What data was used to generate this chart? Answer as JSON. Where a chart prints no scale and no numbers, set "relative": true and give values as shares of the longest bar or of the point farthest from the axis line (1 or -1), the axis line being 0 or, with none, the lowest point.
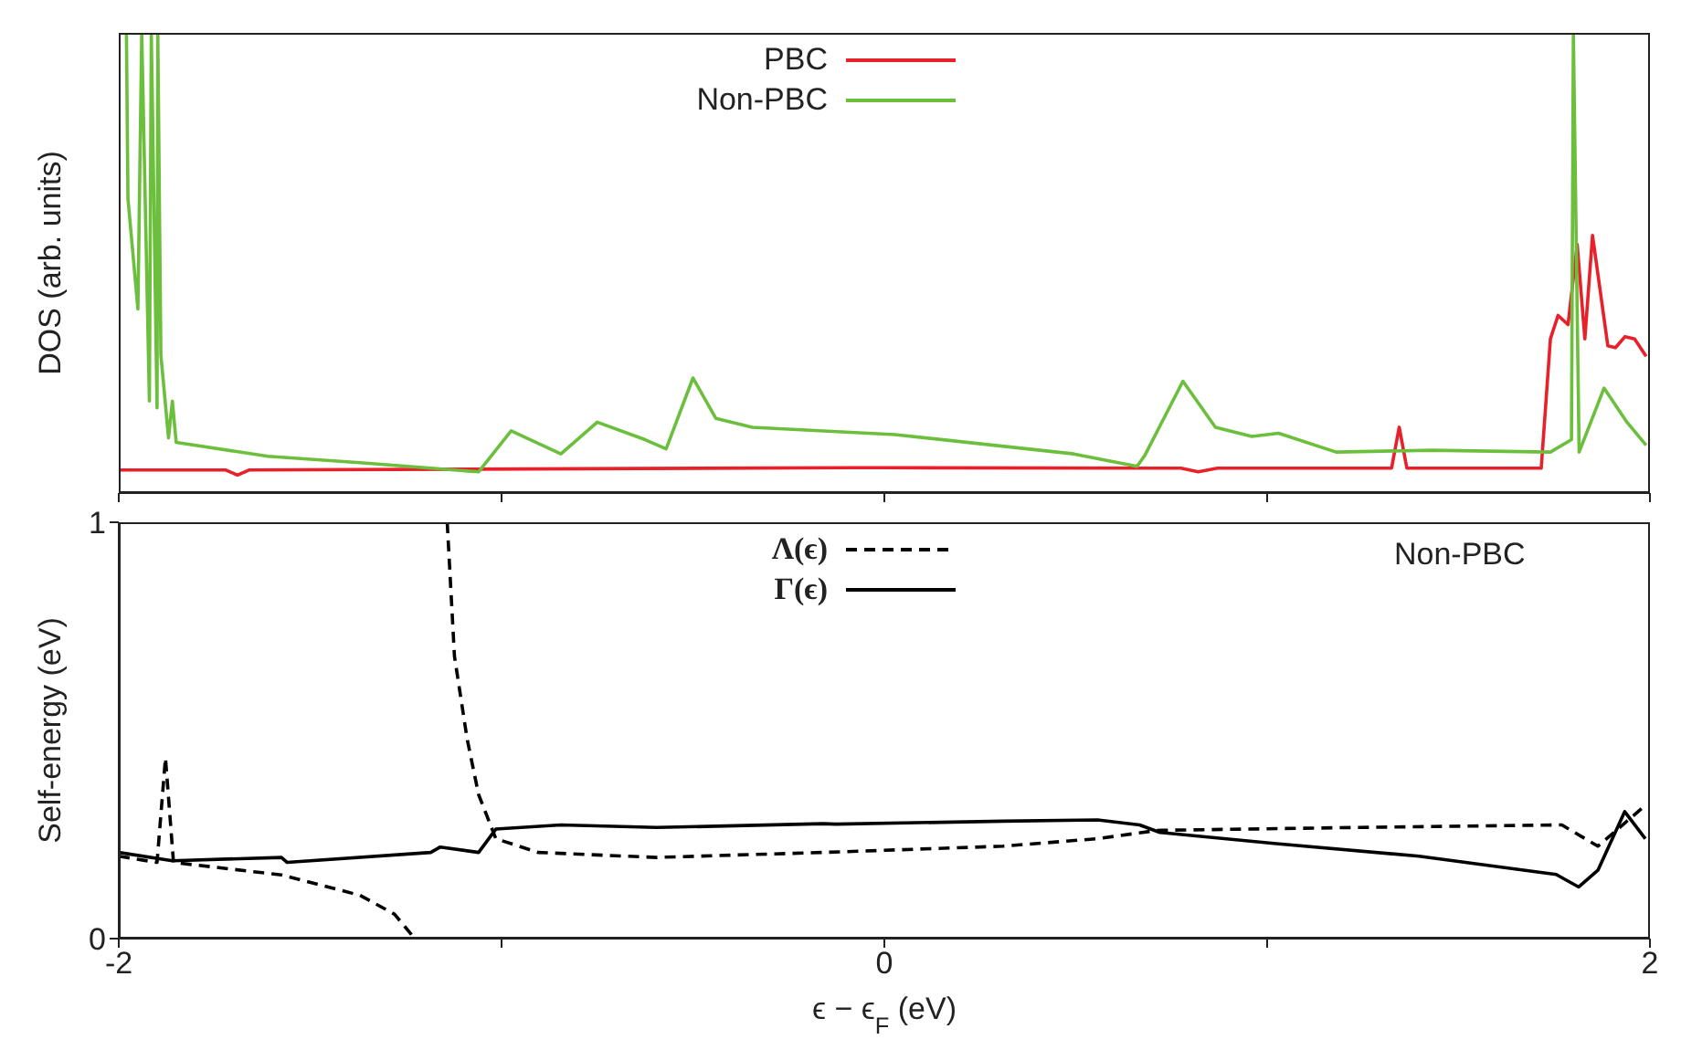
{
  "chart_data": [
    {
      "type": "line",
      "relative": true,
      "ylabel": "DOS (arb. units)",
      "xlim": [
        -2,
        2
      ],
      "xticks": [
        {
          "value": -2,
          "label": null
        },
        {
          "value": -1,
          "label": null
        },
        {
          "value": 0,
          "label": null
        },
        {
          "value": 1,
          "label": null
        },
        {
          "value": 2,
          "label": null
        }
      ],
      "tick_labels": false,
      "legend": "top",
      "line_style": "solid",
      "series": [
        {
          "name": "PBC",
          "color": "#e8202a",
          "x": [
            -2,
            -1.72,
            -1.69,
            -1.66,
            -0.09,
            0,
            0.775,
            0.82,
            0.87,
            1.325,
            1.345,
            1.365,
            1.716,
            1.74,
            1.76,
            1.786,
            1.81,
            1.83,
            1.85,
            1.89,
            1.91,
            1.935,
            1.96,
            1.99
          ],
          "values": [
            0.05,
            0.05,
            0.039,
            0.05,
            0.055,
            0.055,
            0.054,
            0.046,
            0.054,
            0.054,
            0.143,
            0.054,
            0.054,
            0.335,
            0.386,
            0.366,
            0.54,
            0.335,
            0.56,
            0.32,
            0.316,
            0.34,
            0.335,
            0.297
          ]
        },
        {
          "name": "Non-PBC",
          "color": "#6cbf3c",
          "x": [
            -1.98,
            -1.976,
            -1.95,
            -1.94,
            -1.92,
            -1.915,
            -1.9,
            -1.898,
            -1.89,
            -1.87,
            -1.86,
            -1.85,
            -1.61,
            -1.37,
            -1.06,
            -0.975,
            -0.845,
            -0.75,
            -0.625,
            -0.57,
            -0.5,
            -0.44,
            -0.345,
            0.028,
            0.495,
            0.66,
            0.68,
            0.78,
            0.865,
            0.96,
            1.03,
            1.18,
            1.43,
            1.74,
            1.795,
            1.8,
            1.815,
            1.88,
            1.94,
            1.99
          ],
          "values": [
            1,
            0.64,
            0.4,
            1,
            0.2,
            1,
            0.185,
            1,
            0.3,
            0.12,
            0.2,
            0.11,
            0.08,
            0.066,
            0.046,
            0.135,
            0.085,
            0.154,
            0.116,
            0.096,
            0.25,
            0.162,
            0.143,
            0.127,
            0.085,
            0.058,
            0.081,
            0.243,
            0.143,
            0.123,
            0.13,
            0.089,
            0.093,
            0.089,
            0.116,
            1,
            0.089,
            0.228,
            0.154,
            0.104
          ]
        }
      ]
    },
    {
      "type": "line",
      "ylabel": "Self-energy (eV)",
      "xlabel": "ϵ − ϵ$_{F}$ (eV)",
      "xlim": [
        -2,
        2
      ],
      "xticks": [
        -2,
        {
          "value": -1,
          "label": null
        },
        0,
        {
          "value": 1,
          "label": null
        },
        2
      ],
      "ylim": [
        0,
        1
      ],
      "yticks": [
        0,
        1
      ],
      "legend": "top",
      "annotations": [
        "Non-PBC"
      ],
      "series": [
        {
          "name": "Λ(ϵ)",
          "color": "#000000",
          "line_style": "dashed",
          "x": [
            -2,
            -1.9,
            -1.878,
            -1.857,
            -1.575,
            -1.37,
            -1.28,
            -1.232,
            -1.19,
            -1.142,
            -1.123,
            -1.09,
            -1.06,
            -1.015,
            -0.905,
            -0.595,
            -0.16,
            0.31,
            0.557,
            0.713,
            1.24,
            1.77,
            1.864,
            1.988
          ],
          "values": [
            0.198,
            0.183,
            0.434,
            0.183,
            0.153,
            0.104,
            0.059,
            0.006,
            null,
            1,
            0.678,
            0.48,
            0.346,
            0.24,
            0.207,
            0.195,
            0.207,
            0.222,
            0.24,
            0.26,
            0.267,
            0.273,
            0.222,
            0.32
          ]
        },
        {
          "name": "Γ(ϵ)",
          "color": "#000000",
          "line_style": "solid",
          "x": [
            -2,
            -1.86,
            -1.575,
            -1.56,
            -1.185,
            -1.16,
            -1.06,
            -1.015,
            -0.845,
            -0.595,
            -0.44,
            -0.16,
            -0.127,
            0.31,
            0.557,
            0.667,
            0.72,
            1.024,
            1.397,
            1.755,
            1.814,
            1.864,
            1.934,
            1.988
          ],
          "values": [
            0.207,
            0.187,
            0.195,
            0.183,
            0.207,
            0.22,
            0.207,
            0.263,
            0.273,
            0.267,
            0.27,
            0.276,
            0.275,
            0.282,
            0.285,
            0.273,
            0.255,
            0.228,
            0.198,
            0.154,
            0.124,
            0.164,
            0.305,
            0.24
          ]
        }
      ]
    }
  ]
}
